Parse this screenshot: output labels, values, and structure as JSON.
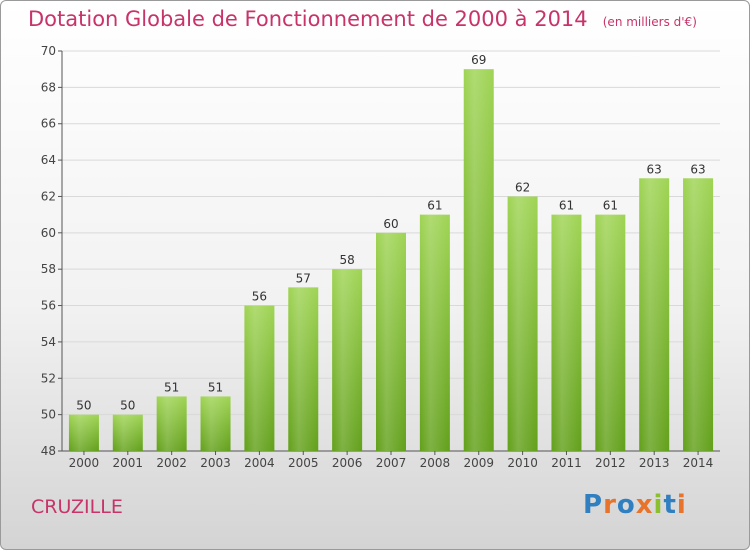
{
  "chart_data": {
    "type": "bar",
    "title": "Dotation Globale de Fonctionnement de 2000 à 2014",
    "subtitle": "(en milliers d'€)",
    "categories": [
      "2000",
      "2001",
      "2002",
      "2003",
      "2004",
      "2005",
      "2006",
      "2007",
      "2008",
      "2009",
      "2010",
      "2011",
      "2012",
      "2013",
      "2014"
    ],
    "values": [
      50,
      50,
      51,
      51,
      56,
      57,
      58,
      60,
      61,
      69,
      62,
      61,
      61,
      63,
      63
    ],
    "ylim": [
      48,
      70
    ],
    "yticks": [
      48,
      50,
      52,
      54,
      56,
      58,
      60,
      62,
      64,
      66,
      68,
      70
    ],
    "grid": true,
    "bar_color": "#7ab82e"
  },
  "footer": {
    "commune": "CRUZILLE",
    "logo_text": "Proxiti",
    "logo_letters": [
      {
        "char": "P",
        "color": "#2f7fc1"
      },
      {
        "char": "r",
        "color": "#e8732a"
      },
      {
        "char": "o",
        "color": "#2f7fc1"
      },
      {
        "char": "x",
        "color": "#e8732a"
      },
      {
        "char": "i",
        "color": "#8cbf2d"
      },
      {
        "char": "t",
        "color": "#2f7fc1"
      },
      {
        "char": "i",
        "color": "#e8732a"
      }
    ]
  }
}
